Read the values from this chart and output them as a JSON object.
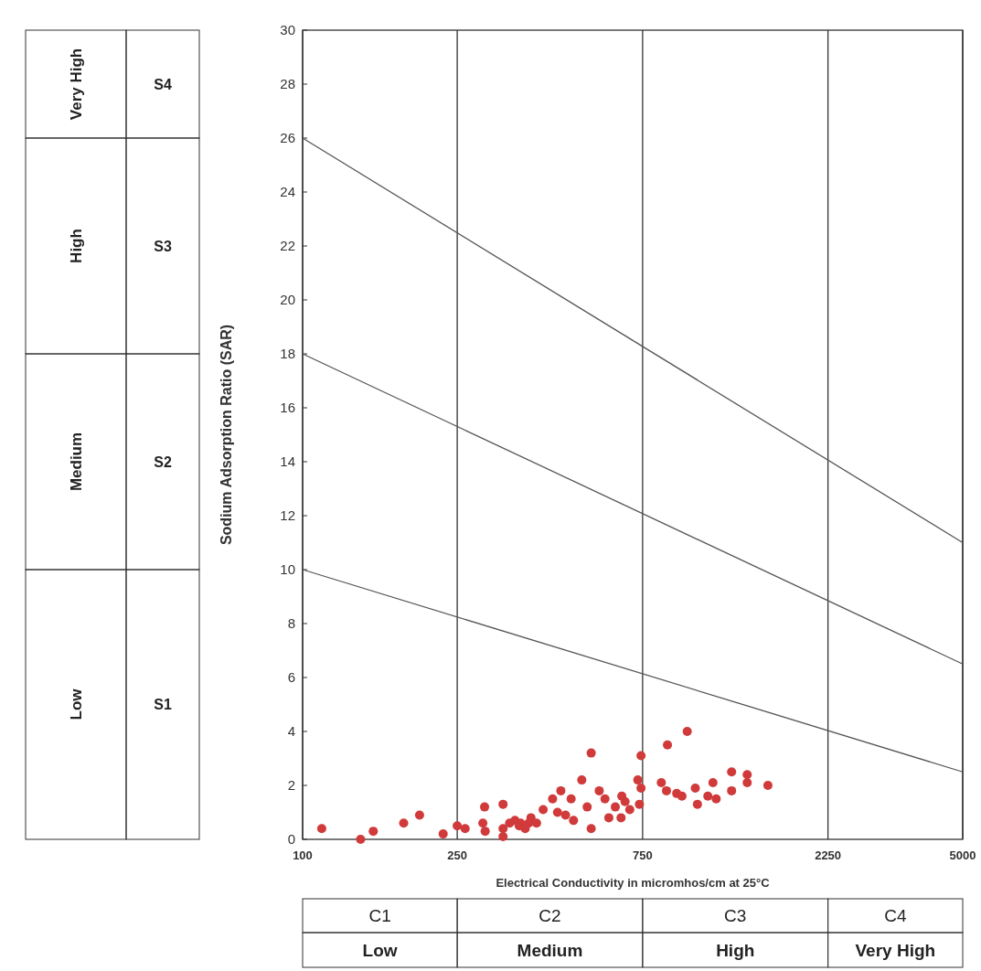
{
  "chart_data": {
    "type": "scatter",
    "xlabel": "Electrical Conductivity in micromhos/cm at 25°C",
    "ylabel": "Sodium Adsorption Ratio (SAR)",
    "log": "x",
    "grid": "x",
    "marker": "circle",
    "xlim": [
      100,
      5000
    ],
    "xticks": [
      100,
      250,
      750,
      2250,
      5000
    ],
    "ylim": [
      0,
      30
    ],
    "yticks": [
      0,
      2,
      4,
      6,
      8,
      10,
      12,
      14,
      16,
      18,
      20,
      22,
      24,
      26,
      28,
      30
    ],
    "series": [
      {
        "type": "line",
        "marker": "none",
        "color": "#555555",
        "x": [
          100,
          5000
        ],
        "values": [
          26,
          11
        ]
      },
      {
        "type": "line",
        "marker": "none",
        "color": "#555555",
        "x": [
          100,
          5000
        ],
        "values": [
          18,
          6.5
        ]
      },
      {
        "type": "line",
        "marker": "none",
        "color": "#555555",
        "x": [
          100,
          5000
        ],
        "values": [
          10,
          2.5
        ]
      },
      {
        "color": "#d03a3a",
        "x": [
          112,
          141,
          152,
          182,
          200,
          230,
          250,
          262,
          294,
          291,
          295,
          328,
          328,
          328,
          341,
          352,
          361,
          364,
          374,
          382,
          387,
          400,
          416,
          440,
          453,
          462,
          475,
          491,
          498,
          523,
          553,
          540,
          553,
          580,
          600,
          614,
          638,
          663,
          676,
          660,
          695,
          736,
          729,
          743,
          743,
          838,
          864,
          869,
          918,
          947,
          977,
          1025,
          1038,
          1104,
          1138,
          1160,
          1271,
          1271,
          1394,
          1394,
          1576
        ],
        "values": [
          0.4,
          0,
          0.3,
          0.6,
          0.9,
          0.2,
          0.5,
          0.4,
          1.2,
          0.6,
          0.3,
          1.3,
          0.4,
          0.1,
          0.6,
          0.7,
          0.5,
          0.6,
          0.4,
          0.6,
          0.8,
          0.6,
          1.1,
          1.5,
          1.0,
          1.8,
          0.9,
          1.5,
          0.7,
          2.2,
          3.2,
          1.2,
          0.4,
          1.8,
          1.5,
          0.8,
          1.2,
          1.6,
          1.4,
          0.8,
          1.1,
          1.3,
          2.2,
          3.1,
          1.9,
          2.1,
          1.8,
          3.5,
          1.7,
          1.6,
          4.0,
          1.9,
          1.3,
          1.6,
          2.1,
          1.5,
          2.5,
          1.8,
          2.4,
          2.1,
          2.0
        ]
      }
    ],
    "annotations": [
      "Very High",
      "S4",
      "High",
      "S3",
      "Medium",
      "S2",
      "Low",
      "S1",
      "C1",
      "C2",
      "C3",
      "C4",
      "Low",
      "Medium",
      "High",
      "Very High"
    ]
  }
}
